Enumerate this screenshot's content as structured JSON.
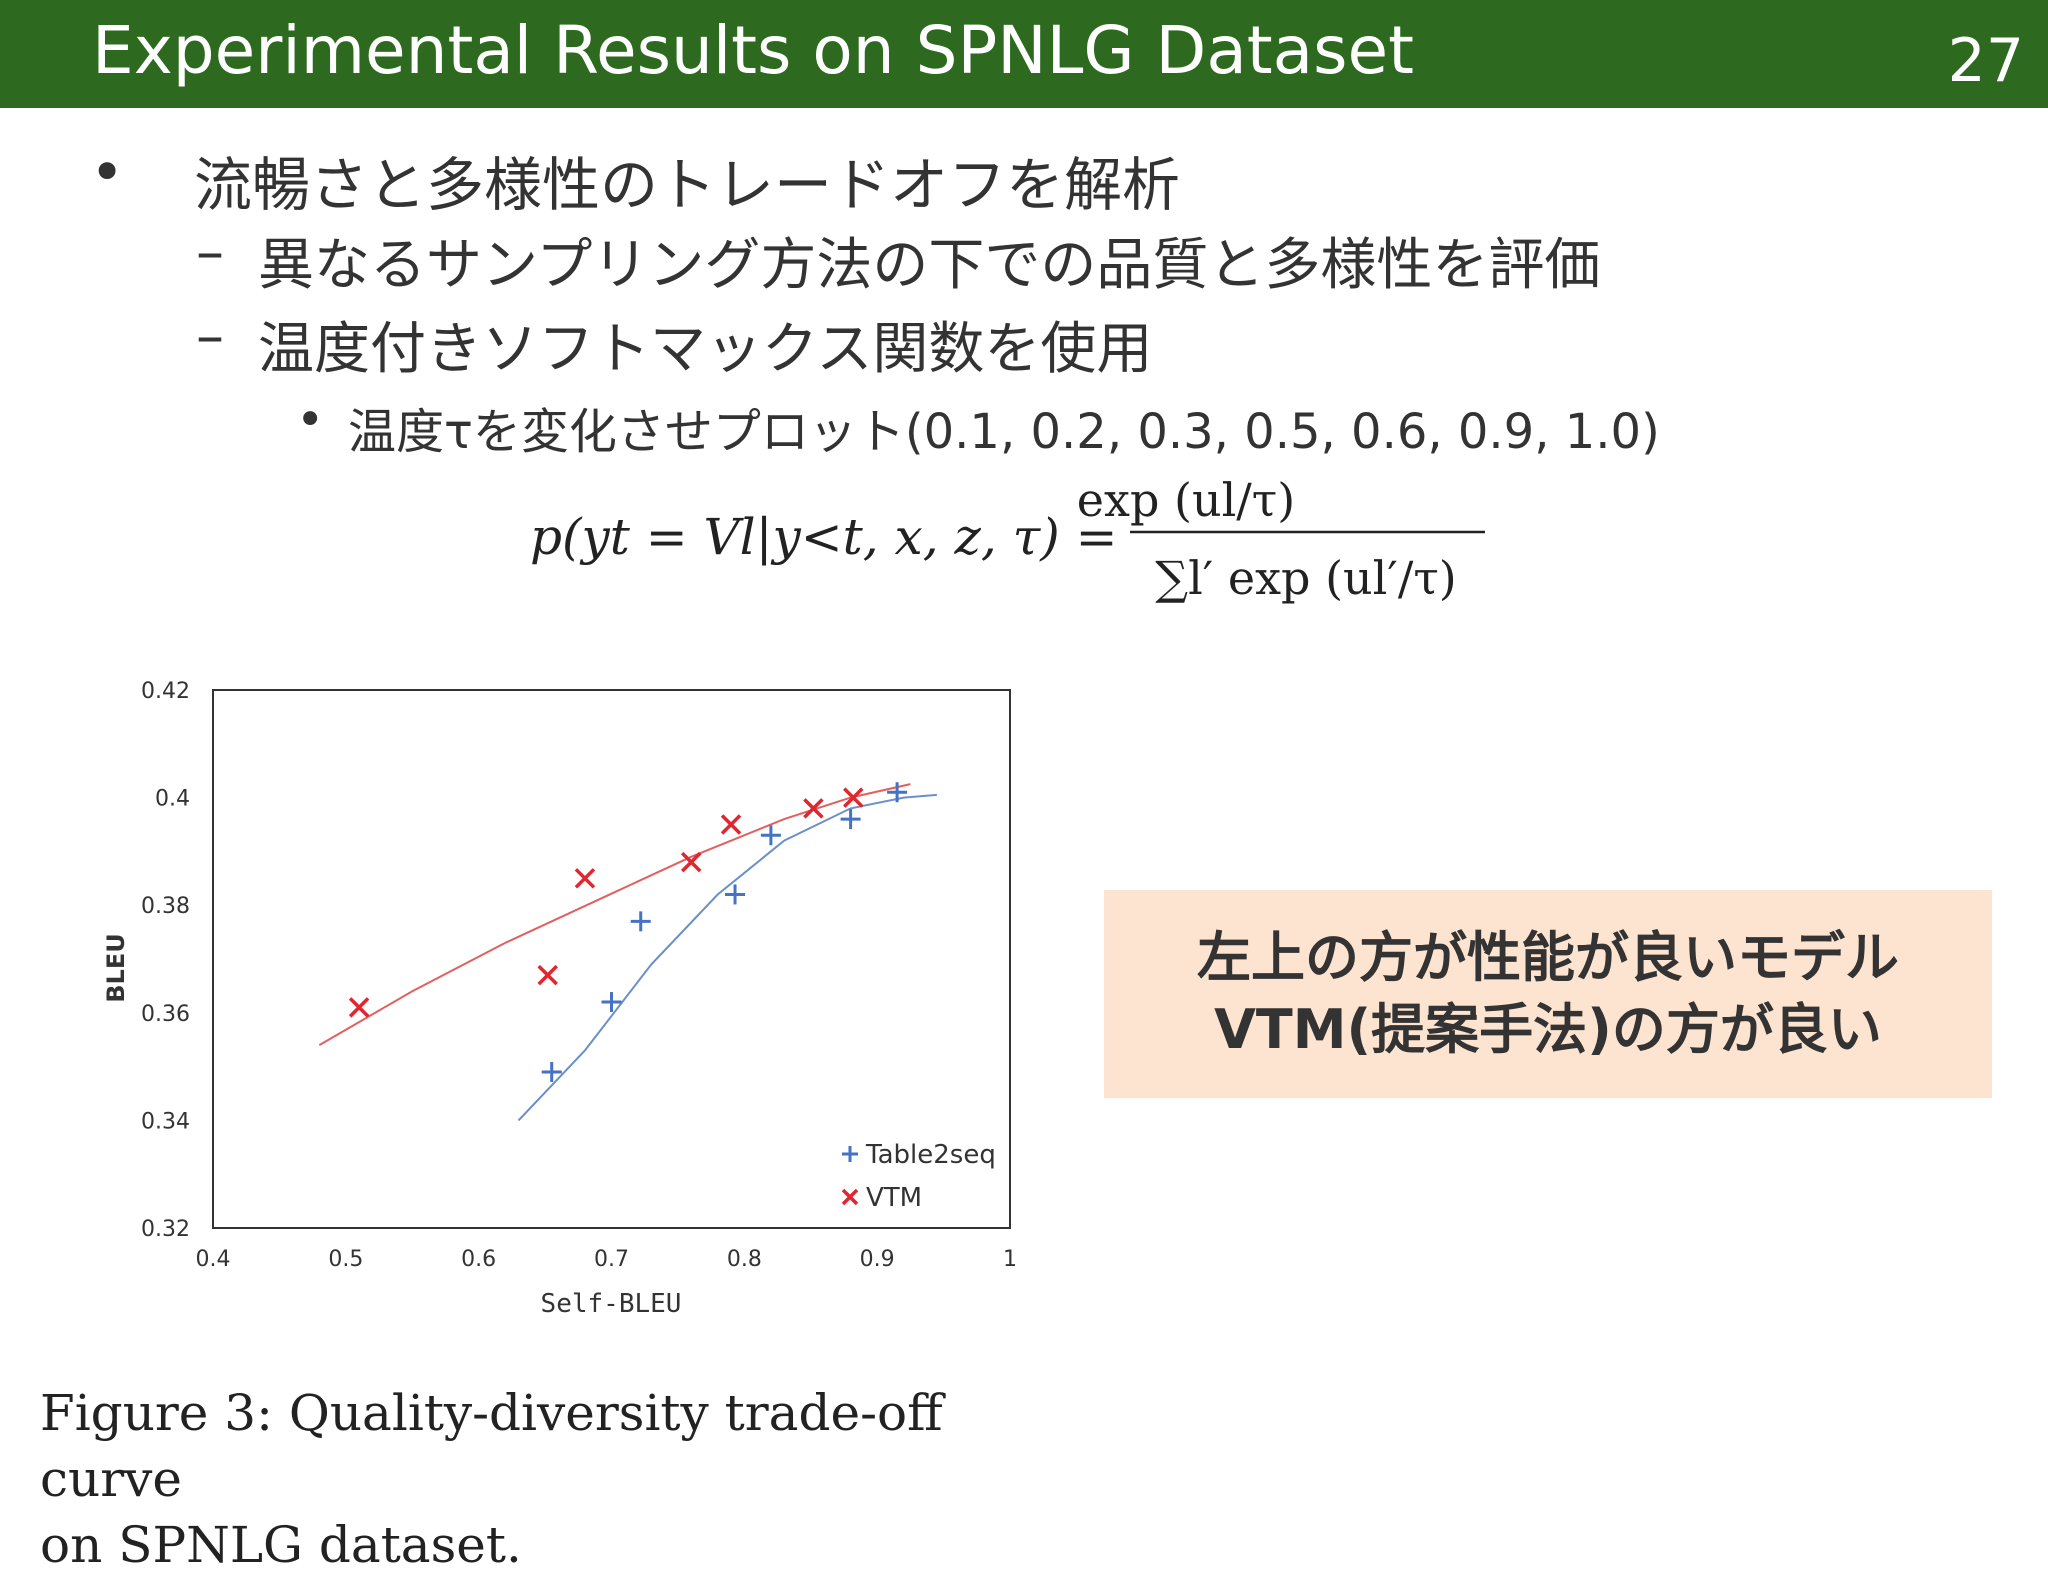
{
  "slide": {
    "title": "Experimental Results on SPNLG Dataset",
    "page_number": "27"
  },
  "bullets": {
    "main": "流暢さと多様性のトレードオフを解析",
    "sub1": "異なるサンプリング方法の下での品質と多様性を評価",
    "sub2": "温度付きソフトマックス関数を使用",
    "sub2_detail": "温度τを変化させプロット(0.1, 0.2, 0.3, 0.5, 0.6, 0.9, 1.0)"
  },
  "formula": {
    "lhs": "p(yt = Vl|y<t, x, z, τ) =",
    "numerator": "exp (ul/τ)",
    "denominator": "∑l′ exp (ul′/τ)"
  },
  "callout": {
    "line1": "左上の方が性能が良いモデル",
    "line2": "VTM(提案手法)の方が良い",
    "background": "#fde4d0"
  },
  "caption": {
    "line1": "Figure 3: Quality-diversity trade-off curve",
    "line2": "on SPNLG dataset."
  },
  "colors": {
    "header_bg": "#2d6a1f",
    "table2seq": "#4472c4",
    "vtm": "#e0262f",
    "vtm_curve": "#e06060",
    "table2seq_curve": "#6b8fc9"
  },
  "chart_data": {
    "type": "scatter",
    "title": "",
    "xlabel": "Self-BLEU",
    "ylabel": "BLEU",
    "xlim": [
      0.4,
      1.0
    ],
    "ylim": [
      0.32,
      0.42
    ],
    "x_ticks": [
      "0.4",
      "0.5",
      "0.6",
      "0.7",
      "0.8",
      "0.9",
      "1"
    ],
    "y_ticks": [
      "0.32",
      "0.34",
      "0.36",
      "0.38",
      "0.4",
      "0.42"
    ],
    "grid": false,
    "legend_position": "bottom-right",
    "series": [
      {
        "name": "Table2seq",
        "marker": "plus",
        "points": [
          {
            "x": 0.655,
            "y": 0.349
          },
          {
            "x": 0.7,
            "y": 0.362
          },
          {
            "x": 0.722,
            "y": 0.377
          },
          {
            "x": 0.793,
            "y": 0.382
          },
          {
            "x": 0.82,
            "y": 0.393
          },
          {
            "x": 0.88,
            "y": 0.396
          },
          {
            "x": 0.915,
            "y": 0.401
          }
        ],
        "trend": [
          {
            "x": 0.63,
            "y": 0.34
          },
          {
            "x": 0.68,
            "y": 0.353
          },
          {
            "x": 0.73,
            "y": 0.369
          },
          {
            "x": 0.78,
            "y": 0.382
          },
          {
            "x": 0.83,
            "y": 0.392
          },
          {
            "x": 0.88,
            "y": 0.398
          },
          {
            "x": 0.92,
            "y": 0.4
          },
          {
            "x": 0.945,
            "y": 0.4005
          }
        ]
      },
      {
        "name": "VTM",
        "marker": "x",
        "points": [
          {
            "x": 0.51,
            "y": 0.361
          },
          {
            "x": 0.652,
            "y": 0.367
          },
          {
            "x": 0.68,
            "y": 0.385
          },
          {
            "x": 0.76,
            "y": 0.388
          },
          {
            "x": 0.79,
            "y": 0.395
          },
          {
            "x": 0.852,
            "y": 0.398
          },
          {
            "x": 0.882,
            "y": 0.4
          }
        ],
        "trend": [
          {
            "x": 0.48,
            "y": 0.354
          },
          {
            "x": 0.55,
            "y": 0.364
          },
          {
            "x": 0.62,
            "y": 0.373
          },
          {
            "x": 0.69,
            "y": 0.381
          },
          {
            "x": 0.76,
            "y": 0.389
          },
          {
            "x": 0.83,
            "y": 0.396
          },
          {
            "x": 0.88,
            "y": 0.4
          },
          {
            "x": 0.925,
            "y": 0.4025
          }
        ]
      }
    ]
  }
}
